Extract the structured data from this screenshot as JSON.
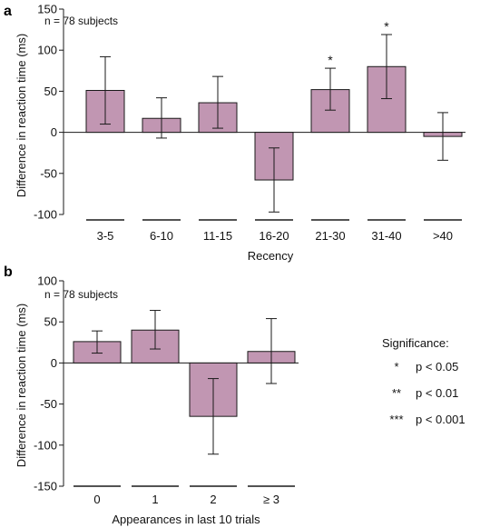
{
  "chart_data": [
    {
      "panel": "a",
      "type": "bar",
      "annotation": "n = 78 subjects",
      "xlabel": "Recency",
      "ylabel": "Difference in reaction time (ms)",
      "ylim": [
        -100,
        150
      ],
      "yticks": [
        -100,
        -50,
        0,
        50,
        100,
        150
      ],
      "categories": [
        "3-5",
        "6-10",
        "11-15",
        "16-20",
        "21-30",
        "31-40",
        ">40"
      ],
      "values": [
        51,
        17,
        36,
        -58,
        52,
        80,
        -5
      ],
      "error_low": [
        10,
        -7,
        5,
        -97,
        27,
        41,
        -34
      ],
      "error_high": [
        92,
        42,
        68,
        -19,
        78,
        119,
        24
      ],
      "significance": [
        "",
        "",
        "",
        "",
        "*",
        "*",
        ""
      ]
    },
    {
      "panel": "b",
      "type": "bar",
      "annotation": "n = 78 subjects",
      "xlabel": "Appearances in last 10 trials",
      "ylabel": "Difference in reaction time (ms)",
      "ylim": [
        -150,
        100
      ],
      "yticks": [
        -150,
        -100,
        -50,
        0,
        50,
        100
      ],
      "categories": [
        "0",
        "1",
        "2",
        "≥ 3"
      ],
      "values": [
        26,
        40,
        -65,
        14
      ],
      "error_low": [
        12,
        17,
        -111,
        -25
      ],
      "error_high": [
        39,
        64,
        -19,
        54
      ],
      "significance": [
        "",
        "",
        "",
        ""
      ]
    }
  ],
  "legend": {
    "title": "Significance:",
    "items": [
      {
        "symbol": "*",
        "label": "p < 0.05"
      },
      {
        "symbol": "**",
        "label": "p < 0.01"
      },
      {
        "symbol": "***",
        "label": "p < 0.001"
      }
    ]
  },
  "colors": {
    "bar_fill": "#c196b2",
    "stroke": "#1a1a1a"
  }
}
